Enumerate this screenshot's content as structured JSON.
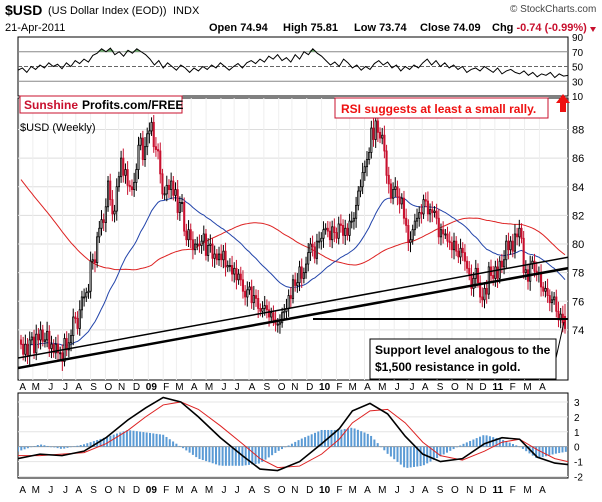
{
  "header": {
    "symbol": "$USD",
    "name": "(US Dollar Index (EOD))",
    "exchange": "INDX",
    "date": "21-Apr-2011",
    "watermark": "© StockCharts.com",
    "open_label": "Open",
    "open": "74.94",
    "high_label": "High",
    "high": "75.81",
    "low_label": "Low",
    "low": "73.74",
    "close_label": "Close",
    "close": "74.09",
    "chg_label": "Chg",
    "chg": "-0.74 (-0.99%)"
  },
  "logo": {
    "part1": "Sunshine",
    "part2": "Profits.com/FREE"
  },
  "annotations": {
    "rsi_note": "RSI suggests at least a small rally.",
    "support_line1": "Support level analogous to the",
    "support_line2": "$1,500 resistance in gold."
  },
  "colors": {
    "candle_up": "#000000",
    "candle_down": "#c8102e",
    "ma_short": "#dd2222",
    "ma_long": "#2244aa",
    "histogram": "#5b9bd5",
    "accent_red": "#ee1111"
  },
  "chart_data": [
    {
      "type": "line",
      "name": "RSI",
      "ylim": [
        10,
        90
      ],
      "y_ticks": [
        90,
        70,
        50,
        30,
        10
      ],
      "reference_lines": [
        70,
        50,
        30
      ],
      "x": [
        0,
        2,
        4,
        6,
        8,
        10,
        12,
        14,
        16,
        18,
        20,
        22,
        24,
        26,
        28,
        30,
        32,
        34,
        36,
        38,
        40,
        42,
        44,
        46,
        48,
        50,
        52,
        54,
        56,
        58,
        60,
        62,
        64,
        66,
        68,
        70,
        72,
        74,
        76,
        78,
        80,
        82,
        84,
        86,
        88,
        90,
        92,
        94,
        96,
        98,
        100,
        102,
        104,
        106,
        108,
        110,
        112,
        114,
        116,
        118,
        120,
        122,
        124,
        126,
        128,
        130,
        132,
        134,
        136,
        138,
        140,
        142,
        144,
        146,
        148,
        150,
        152,
        154,
        156,
        158,
        160,
        162,
        164,
        166,
        168,
        170,
        172,
        174,
        176,
        178,
        180,
        182,
        184,
        186,
        188,
        190,
        192,
        194,
        196,
        198,
        200,
        202,
        204,
        206,
        208,
        210,
        212,
        214,
        216,
        218,
        220,
        222,
        224,
        226,
        228,
        230,
        232,
        234,
        236,
        238,
        240,
        242,
        244,
        246,
        248,
        250
      ],
      "values": [
        45,
        48,
        42,
        50,
        46,
        52,
        48,
        55,
        50,
        53,
        47,
        55,
        50,
        58,
        54,
        60,
        56,
        65,
        68,
        74,
        70,
        75,
        66,
        70,
        64,
        72,
        68,
        74,
        70,
        66,
        60,
        52,
        58,
        48,
        55,
        50,
        45,
        52,
        48,
        42,
        48,
        44,
        50,
        46,
        52,
        48,
        55,
        50,
        45,
        50,
        54,
        48,
        55,
        58,
        54,
        60,
        56,
        64,
        60,
        66,
        58,
        62,
        56,
        66,
        60,
        70,
        66,
        74,
        68,
        64,
        58,
        52,
        56,
        50,
        60,
        55,
        48,
        52,
        45,
        50,
        46,
        54,
        58,
        52,
        56,
        48,
        52,
        44,
        50,
        46,
        52,
        48,
        55,
        60,
        52,
        58,
        50,
        55,
        48,
        52,
        46,
        50,
        42,
        46,
        48,
        44,
        50,
        46,
        42,
        48,
        40,
        44,
        46,
        42,
        40,
        44,
        38,
        42,
        36,
        40,
        38,
        42,
        35,
        40,
        37,
        38
      ]
    },
    {
      "type": "candlestick",
      "title": "$USD (Weekly)",
      "ylim": [
        70.5,
        90.2
      ],
      "y_ticks": [
        74,
        76,
        78,
        80,
        82,
        84,
        86,
        88
      ],
      "x_tick_labels": [
        "A",
        "M",
        "J",
        "J",
        "A",
        "S",
        "O",
        "N",
        "D",
        "09",
        "F",
        "M",
        "A",
        "M",
        "J",
        "J",
        "A",
        "S",
        "O",
        "N",
        "D",
        "10",
        "F",
        "M",
        "A",
        "M",
        "J",
        "J",
        "A",
        "S",
        "O",
        "N",
        "D",
        "11",
        "F",
        "M",
        "A"
      ],
      "x_tick_positions": [
        0.5,
        4.5,
        9,
        13.5,
        17.5,
        22,
        26.5,
        30.5,
        35,
        39.5,
        44,
        48,
        52.5,
        57,
        61.5,
        65.5,
        70,
        74.5,
        79,
        83,
        87.5,
        92,
        96.5,
        100.5,
        105,
        109.5,
        114,
        118.5,
        122.5,
        127,
        131.5,
        136,
        140,
        144.5,
        149,
        153.5,
        158
      ],
      "close": [
        73.0,
        72.3,
        73.0,
        72.2,
        73.3,
        73.5,
        72.4,
        73.7,
        73.3,
        74.0,
        73.2,
        73.3,
        73.9,
        72.7,
        73.0,
        72.4,
        73.0,
        72.4,
        72.4,
        71.8,
        73.4,
        72.6,
        73.1,
        73.6,
        74.9,
        74.8,
        74.1,
        75.4,
        76.3,
        76.3,
        76.6,
        76.7,
        78.8,
        78.9,
        78.7,
        80.5,
        81.1,
        81.7,
        81.5,
        82.6,
        84.4,
        83.1,
        82.1,
        82.3,
        84.0,
        84.7,
        86.0,
        84.8,
        85.2,
        84.1,
        84.0,
        83.8,
        84.3,
        85.2,
        86.9,
        87.4,
        85.9,
        86.8,
        87.7,
        87.9,
        88.5,
        86.8,
        86.6,
        86.5,
        84.9,
        83.5,
        83.5,
        84.1,
        83.8,
        84.4,
        83.4,
        83.8,
        82.2,
        82.9,
        82.9,
        80.9,
        80.3,
        81.0,
        80.3,
        79.6,
        80.0,
        80.0,
        79.9,
        80.2,
        80.7,
        79.2,
        79.9,
        80.0,
        79.0,
        79.3,
        78.9,
        79.3,
        78.9,
        79.5,
        78.4,
        78.5,
        78.5,
        77.9,
        78.3,
        77.5,
        77.9,
        77.5,
        76.7,
        76.3,
        76.8,
        77.0,
        75.9,
        76.4,
        76.2,
        75.5,
        75.3,
        75.5,
        75.7,
        75.4,
        74.9,
        75.2,
        74.7,
        74.4,
        74.4,
        74.5,
        75.2,
        75.3,
        75.5,
        76.4,
        76.2,
        77.5,
        77.1,
        77.3,
        78.4,
        77.6,
        78.0,
        78.6,
        79.4,
        80.0,
        79.8,
        79.0,
        80.2,
        80.2,
        80.4,
        81.0,
        81.1,
        80.9,
        80.3,
        81.2,
        80.8,
        80.4,
        81.4,
        81.3,
        80.6,
        81.1,
        80.6,
        81.6,
        81.6,
        81.8,
        82.7,
        83.7,
        84.0,
        85.0,
        85.4,
        85.9,
        86.4,
        88.1,
        87.3,
        88.6,
        87.8,
        87.4,
        87.6,
        86.5,
        84.8,
        84.2,
        83.2,
        83.8,
        84.0,
        83.3,
        82.8,
        83.2,
        81.8,
        81.3,
        80.1,
        80.3,
        81.0,
        81.6,
        81.8,
        82.2,
        82.1,
        83.1,
        83.0,
        82.1,
        82.4,
        82.2,
        82.3,
        81.8,
        80.5,
        81.0,
        80.7,
        80.7,
        80.2,
        80.1,
        79.6,
        80.2,
        79.5,
        79.1,
        79.7,
        79.4,
        78.8,
        78.3,
        77.9,
        76.9,
        77.6,
        78.3,
        77.3,
        76.3,
        76.1,
        76.9,
        76.5,
        78.4,
        77.8,
        77.6,
        78.4,
        77.6,
        78.8,
        78.4,
        78.9,
        80.2,
        79.6,
        80.2,
        79.5,
        80.7,
        80.5,
        81.1,
        80.4,
        78.0,
        78.2,
        77.4,
        78.6,
        78.8,
        78.1,
        77.9,
        78.0,
        77.0,
        76.7,
        76.9,
        76.4,
        75.9,
        76.1,
        76.3,
        75.3,
        74.7,
        75.1,
        74.5,
        74.1
      ],
      "high_last": 75.81,
      "low_last": 73.74,
      "open_last": 74.94
    },
    {
      "type": "line",
      "name": "MACD",
      "ylim": [
        -2.1,
        3.6
      ],
      "y_ticks": [
        3,
        2,
        1,
        0,
        -1,
        -2
      ],
      "series": [
        {
          "role": "macd",
          "x": [
            0,
            10,
            20,
            30,
            40,
            50,
            58,
            66,
            74,
            82,
            92,
            102,
            110,
            118,
            128,
            138,
            146,
            152,
            160,
            168,
            176,
            184,
            192,
            202,
            212,
            220,
            228,
            236,
            244,
            250
          ],
          "values": [
            -0.8,
            -0.5,
            -0.6,
            -0.3,
            0.6,
            1.8,
            2.6,
            3.3,
            3.0,
            2.0,
            0.6,
            -0.6,
            -1.5,
            -1.6,
            -1.0,
            0.2,
            1.2,
            2.4,
            2.9,
            2.2,
            0.7,
            -0.5,
            -1.0,
            -0.8,
            0.2,
            0.6,
            0.5,
            -0.7,
            -1.1,
            -1.2
          ]
        },
        {
          "role": "signal",
          "x": [
            0,
            10,
            20,
            30,
            40,
            50,
            58,
            66,
            74,
            82,
            92,
            102,
            110,
            118,
            128,
            138,
            146,
            152,
            160,
            168,
            176,
            184,
            192,
            202,
            212,
            220,
            228,
            236,
            244,
            250
          ],
          "values": [
            -0.6,
            -0.6,
            -0.5,
            -0.4,
            0.2,
            1.1,
            2.0,
            2.8,
            3.0,
            2.5,
            1.4,
            0.2,
            -0.8,
            -1.4,
            -1.3,
            -0.5,
            0.5,
            1.6,
            2.4,
            2.5,
            1.6,
            0.3,
            -0.6,
            -0.9,
            -0.3,
            0.3,
            0.5,
            -0.2,
            -0.8,
            -1.0
          ]
        }
      ]
    }
  ]
}
